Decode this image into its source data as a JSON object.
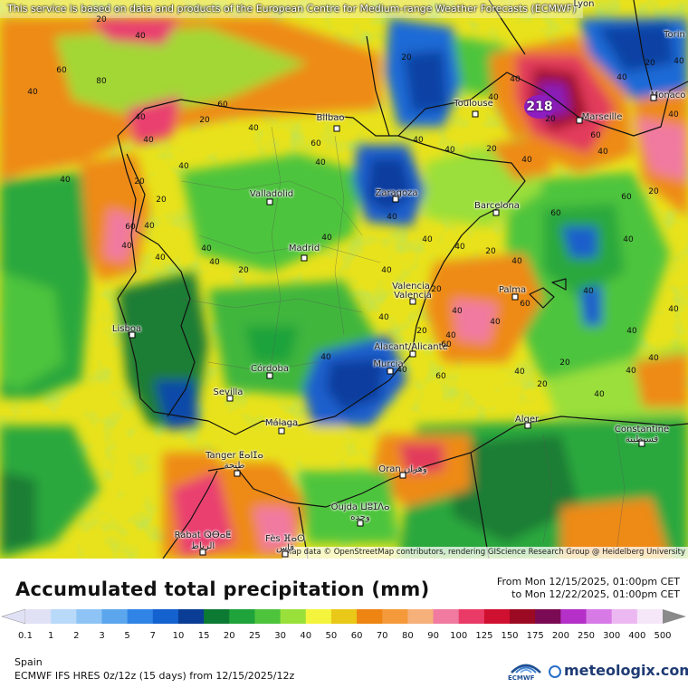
{
  "map": {
    "source_notice": "This service is based on data and products of the European Centre for Medium-range Weather Forecasts (ECMWF)",
    "map_credit": "Map data © OpenStreetMap contributors, rendering GIScience Research Group @ Heidelberg University",
    "peak_value": "218",
    "cities": [
      {
        "name": "Lyon"
      },
      {
        "name": "Torin"
      },
      {
        "name": "Monaco"
      },
      {
        "name": "Toulouse"
      },
      {
        "name": "Marseille"
      },
      {
        "name": "Bilbao"
      },
      {
        "name": "Zaragoza"
      },
      {
        "name": "Barcelona"
      },
      {
        "name": "Valladolid"
      },
      {
        "name": "Madrid"
      },
      {
        "name": "Valencia"
      },
      {
        "name": "Valencia"
      },
      {
        "name": "Palma"
      },
      {
        "name": "Lisboa"
      },
      {
        "name": "Alacant/Alicante"
      },
      {
        "name": "Murcia"
      },
      {
        "name": "Córdoba"
      },
      {
        "name": "Sevilla"
      },
      {
        "name": "Málaga"
      },
      {
        "name": "Alger"
      },
      {
        "name": "Constantine"
      },
      {
        "name": "قسنطينة"
      },
      {
        "name": "Tanger ⵟⴰⵏⵊⴰ"
      },
      {
        "name": "طنجة"
      },
      {
        "name": "Oran وهران"
      },
      {
        "name": "Oujda ⵡⵓⵊⴷⴰ"
      },
      {
        "name": "وجدة"
      },
      {
        "name": "Rabat ⵕⴱⴰⵟ"
      },
      {
        "name": "الرباط"
      },
      {
        "name": "Fès ⴼⴰⵙ"
      },
      {
        "name": "فاس"
      }
    ],
    "contour_labels": [
      "20",
      "40",
      "60",
      "80",
      "40",
      "60",
      "40",
      "20",
      "40",
      "40",
      "40",
      "60",
      "40",
      "20",
      "40",
      "40",
      "20",
      "40",
      "40",
      "40",
      "20",
      "60",
      "40",
      "60",
      "20",
      "40",
      "40",
      "40",
      "20",
      "40",
      "40",
      "20",
      "20",
      "40",
      "60",
      "40",
      "40",
      "40",
      "20",
      "40",
      "40",
      "40",
      "40",
      "40",
      "20",
      "40",
      "60",
      "40",
      "20",
      "40",
      "40",
      "40",
      "40",
      "60",
      "40",
      "40",
      "20",
      "60",
      "40",
      "40",
      "40",
      "20",
      "40",
      "60",
      "40",
      "20",
      "40",
      "40"
    ]
  },
  "legend": {
    "title": "Accumulated total precipitation (mm)",
    "period_from": "From Mon 12/15/2025, 01:00pm CET",
    "period_to": "to Mon 12/22/2025, 01:00pm CET",
    "region": "Spain",
    "model_info": "ECMWF IFS HRES 0z/12z (15 days) from 12/15/2025/12z",
    "ecmwf_label": "ECMWF",
    "provider": "meteologix.com",
    "scale": [
      {
        "label": "0.1",
        "color": "#e1e1f5"
      },
      {
        "label": "1",
        "color": "#b9d9f9"
      },
      {
        "label": "2",
        "color": "#8ec4f5"
      },
      {
        "label": "3",
        "color": "#5ca6ee"
      },
      {
        "label": "5",
        "color": "#2f84e6"
      },
      {
        "label": "7",
        "color": "#1462cf"
      },
      {
        "label": "10",
        "color": "#0b3d96"
      },
      {
        "label": "15",
        "color": "#0d7a33"
      },
      {
        "label": "20",
        "color": "#1fa33b"
      },
      {
        "label": "25",
        "color": "#4dc43c"
      },
      {
        "label": "30",
        "color": "#9ae03a"
      },
      {
        "label": "40",
        "color": "#f4f43c"
      },
      {
        "label": "50",
        "color": "#e9c817"
      },
      {
        "label": "60",
        "color": "#ee8412"
      },
      {
        "label": "70",
        "color": "#f59a3a"
      },
      {
        "label": "80",
        "color": "#f6b07a"
      },
      {
        "label": "90",
        "color": "#f07aa0"
      },
      {
        "label": "100",
        "color": "#ea3b66"
      },
      {
        "label": "125",
        "color": "#d01030"
      },
      {
        "label": "150",
        "color": "#9b0a22"
      },
      {
        "label": "175",
        "color": "#7a0a54"
      },
      {
        "label": "200",
        "color": "#b530c8"
      },
      {
        "label": "250",
        "color": "#d77ae6"
      },
      {
        "label": "300",
        "color": "#ecb8f2"
      },
      {
        "label": "400",
        "color": "#f5e6f8"
      },
      {
        "label": "500",
        "color": "#cfcfcf"
      }
    ]
  }
}
